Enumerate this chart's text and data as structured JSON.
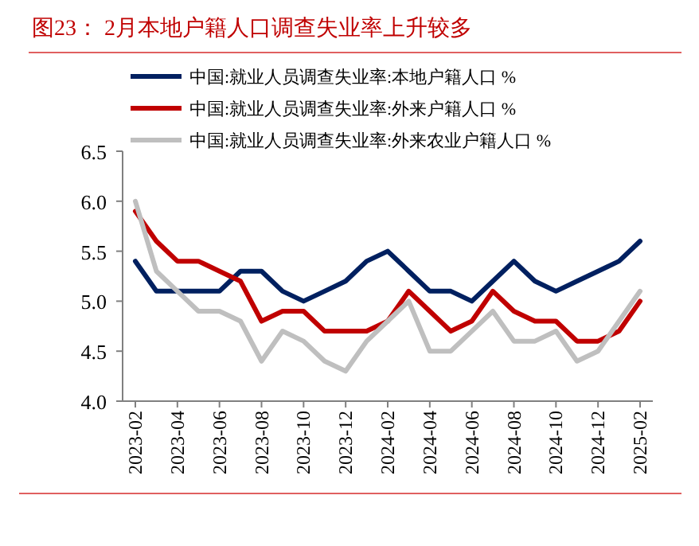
{
  "chart_data": {
    "type": "line",
    "title": "图23：  2月本地户籍人口调查失业率上升较多",
    "categories": [
      "2023-02",
      null,
      "2023-04",
      null,
      "2023-06",
      null,
      "2023-08",
      null,
      "2023-10",
      null,
      "2023-12",
      null,
      "2024-02",
      null,
      "2024-04",
      null,
      "2024-06",
      null,
      "2024-08",
      null,
      "2024-10",
      null,
      "2024-12",
      null,
      "2025-02"
    ],
    "series": [
      {
        "name": "中国:就业人员调查失业率:本地户籍人口 %",
        "color": "#002060",
        "values": [
          5.4,
          5.1,
          5.1,
          5.1,
          5.1,
          5.3,
          5.3,
          5.1,
          5.0,
          5.1,
          5.2,
          5.4,
          5.5,
          5.3,
          5.1,
          5.1,
          5.0,
          5.2,
          5.4,
          5.2,
          5.1,
          5.2,
          5.3,
          5.4,
          5.6
        ]
      },
      {
        "name": "中国:就业人员调查失业率:外来户籍人口 %",
        "color": "#c00000",
        "values": [
          5.9,
          5.6,
          5.4,
          5.4,
          5.3,
          5.2,
          4.8,
          4.9,
          4.9,
          4.7,
          4.7,
          4.7,
          4.8,
          5.1,
          4.9,
          4.7,
          4.8,
          5.1,
          4.9,
          4.8,
          4.8,
          4.6,
          4.6,
          4.7,
          5.0
        ]
      },
      {
        "name": "中国:就业人员调查失业率:外来农业户籍人口 %",
        "color": "#bfbfbf",
        "values": [
          6.0,
          5.3,
          5.1,
          4.9,
          4.9,
          4.8,
          4.4,
          4.7,
          4.6,
          4.4,
          4.3,
          4.6,
          4.8,
          5.0,
          4.5,
          4.5,
          4.7,
          4.9,
          4.6,
          4.6,
          4.7,
          4.4,
          4.5,
          4.8,
          5.1
        ]
      }
    ],
    "ylim": [
      4.0,
      6.5
    ],
    "yticks": [
      {
        "value": 4.0,
        "label": "4.0"
      },
      {
        "value": 4.5,
        "label": "4.5"
      },
      {
        "value": 5.0,
        "label": "5.0"
      },
      {
        "value": 5.5,
        "label": "5.5"
      },
      {
        "value": 6.0,
        "label": "6.0"
      },
      {
        "value": 6.5,
        "label": "6.5"
      }
    ],
    "legend": "top left",
    "grid": false,
    "marker": "none",
    "line_style": "solid"
  }
}
